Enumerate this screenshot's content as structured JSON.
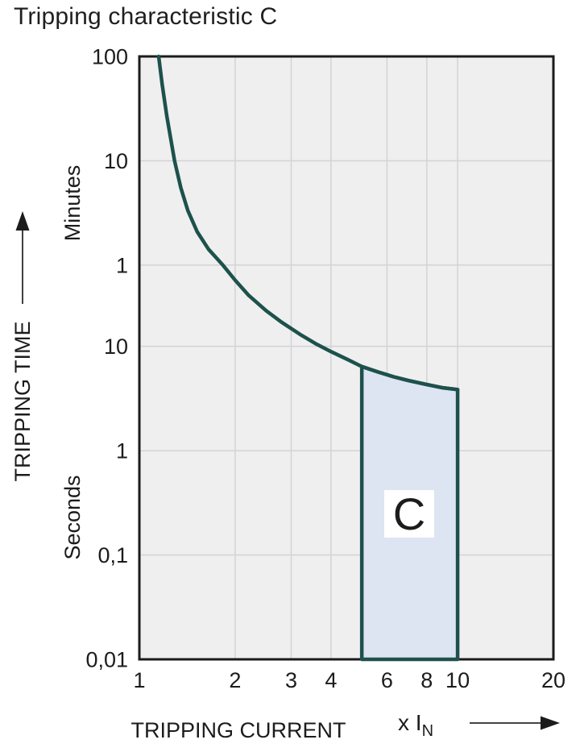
{
  "chart_data": {
    "type": "line",
    "title": "Tripping characteristic C",
    "xlabel": "TRIPPING CURRENT",
    "xlabel_multiplier": "x I",
    "xlabel_multiplier_sub": "N",
    "ylabel": "TRIPPING TIME",
    "x_scale": "log",
    "x_range": [
      1,
      20
    ],
    "x_ticks": [
      1,
      2,
      3,
      4,
      6,
      8,
      10,
      20
    ],
    "x_gridlines": [
      2,
      3,
      4,
      6,
      8,
      10
    ],
    "y_scale": "log",
    "y_range_seconds": [
      0.01,
      6000
    ],
    "y_axis_units": {
      "top": "Minutes",
      "bottom": "Seconds"
    },
    "y_ticks": [
      {
        "label": "100",
        "seconds": 6000,
        "unit": "minutes"
      },
      {
        "label": "10",
        "seconds": 600,
        "unit": "minutes"
      },
      {
        "label": "1",
        "seconds": 60,
        "unit": "minutes"
      },
      {
        "label": "10",
        "seconds": 10,
        "unit": "seconds"
      },
      {
        "label": "1",
        "seconds": 1,
        "unit": "seconds"
      },
      {
        "label": "0,1",
        "seconds": 0.1,
        "unit": "seconds"
      },
      {
        "label": "0,01",
        "seconds": 0.01,
        "unit": "seconds"
      }
    ],
    "y_gridlines_seconds": [
      600,
      60,
      10,
      1,
      0.1
    ],
    "grid": "on",
    "legend": "none",
    "series": [
      {
        "name": "C tripping curve",
        "color": "#1d514c",
        "points_x_seconds": [
          [
            1.15,
            6000
          ],
          [
            1.18,
            3200
          ],
          [
            1.22,
            1600
          ],
          [
            1.29,
            600
          ],
          [
            1.35,
            330
          ],
          [
            1.42,
            200
          ],
          [
            1.52,
            125
          ],
          [
            1.65,
            85
          ],
          [
            1.83,
            60
          ],
          [
            2.0,
            43
          ],
          [
            2.2,
            31
          ],
          [
            2.5,
            22
          ],
          [
            2.8,
            17
          ],
          [
            3.2,
            13
          ],
          [
            3.6,
            10.5
          ],
          [
            4.0,
            8.9
          ],
          [
            4.5,
            7.5
          ],
          [
            5.0,
            6.4
          ],
          [
            5.6,
            5.7
          ],
          [
            6.3,
            5.1
          ],
          [
            7.0,
            4.7
          ],
          [
            8.0,
            4.3
          ],
          [
            9.0,
            4.0
          ],
          [
            10.0,
            3.85
          ]
        ]
      }
    ],
    "region": {
      "label": "C",
      "x_range": [
        5,
        10
      ],
      "bottom_seconds": 0.01,
      "top_points_x_seconds": [
        [
          5.0,
          6.4
        ],
        [
          5.6,
          5.7
        ],
        [
          6.3,
          5.1
        ],
        [
          7.0,
          4.7
        ],
        [
          8.0,
          4.3
        ],
        [
          9.0,
          4.0
        ],
        [
          10.0,
          3.85
        ]
      ],
      "fill": "#dde4f2",
      "border": "#1d514c"
    },
    "colors": {
      "plot_bg": "#efefef",
      "gridline": "#d3d3d7",
      "frame": "#1b1b1b",
      "text": "#1c1c1c",
      "curve": "#1d514c",
      "region_fill": "#dde4f2",
      "region_label_bg": "#ffffff",
      "arrow": "#2a2a2a"
    }
  }
}
